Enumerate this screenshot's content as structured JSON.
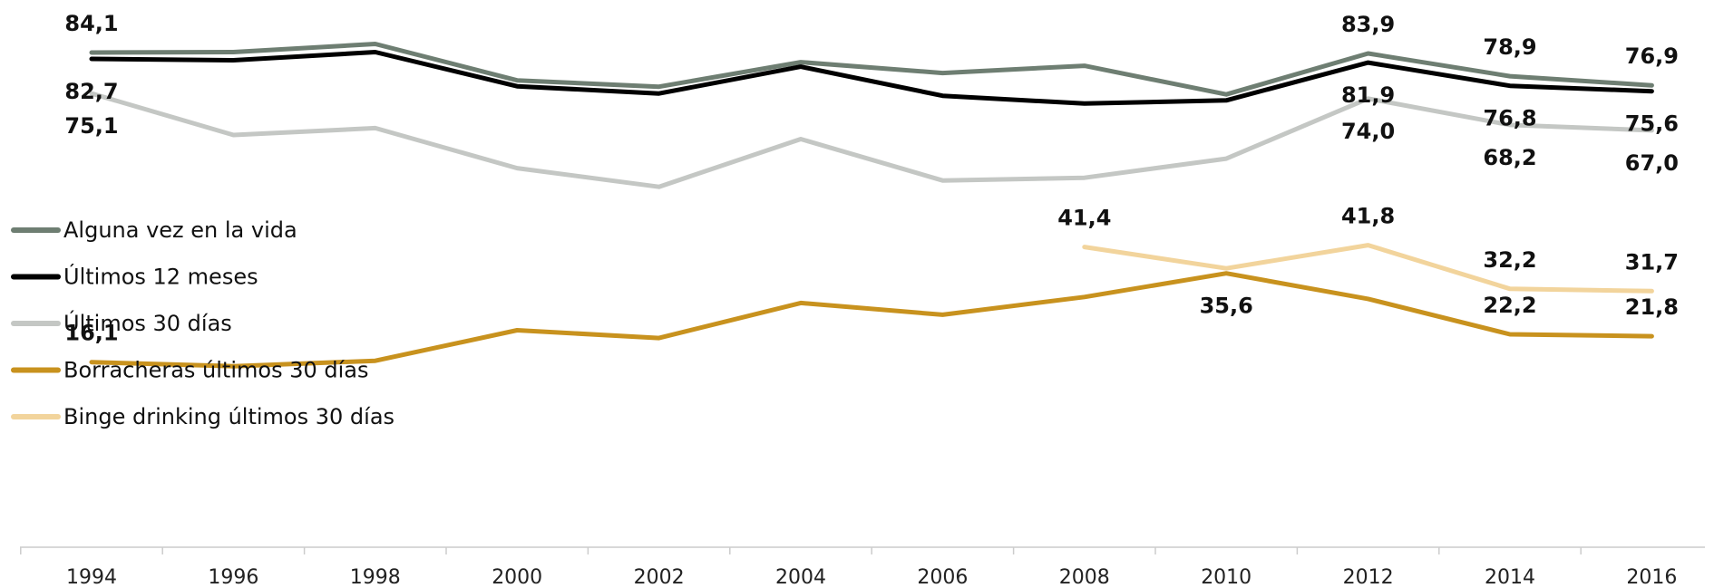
{
  "chart_data": {
    "type": "line",
    "title": "",
    "xlabel": "",
    "ylabel": "",
    "ylim": [
      0,
      90
    ],
    "grid": false,
    "legend_position": "left",
    "x": [
      "1994",
      "1996",
      "1998",
      "2000",
      "2002",
      "2004",
      "2006",
      "2008",
      "2010",
      "2012",
      "2014",
      "2016"
    ],
    "series": [
      {
        "name": "Alguna vez en la vida",
        "color": "#6e7e72",
        "values": [
          84.1,
          84.2,
          86.0,
          78.0,
          76.6,
          82.0,
          79.6,
          81.2,
          74.9,
          83.9,
          78.9,
          76.9
        ]
      },
      {
        "name": "Últimos 12 meses",
        "color": "#000000",
        "values": [
          82.7,
          82.4,
          84.2,
          76.7,
          75.1,
          81.0,
          74.6,
          72.9,
          73.6,
          81.9,
          76.8,
          75.6
        ]
      },
      {
        "name": "Últimos 30 días",
        "color": "#c4c7c4",
        "values": [
          75.1,
          66.0,
          67.5,
          58.7,
          54.6,
          65.1,
          56.0,
          56.6,
          60.8,
          74.0,
          68.2,
          67.0
        ]
      },
      {
        "name": "Borracheras últimos 30 días",
        "color": "#c8921e",
        "values": [
          16.1,
          15.2,
          16.4,
          23.1,
          21.4,
          29.1,
          26.5,
          30.4,
          35.6,
          30.0,
          22.2,
          21.8
        ]
      },
      {
        "name": "Binge drinking últimos 30 días",
        "color": "#f2d49c",
        "values": [
          null,
          null,
          null,
          null,
          null,
          null,
          null,
          41.4,
          36.7,
          41.8,
          32.2,
          31.7
        ]
      }
    ],
    "data_labels": [
      {
        "text": "84,1",
        "series": 0,
        "x": "1994",
        "pos": "above"
      },
      {
        "text": "82,7",
        "series": 1,
        "x": "1994",
        "pos": "below"
      },
      {
        "text": "75,1",
        "series": 2,
        "x": "1994",
        "pos": "below"
      },
      {
        "text": "16,1",
        "series": 3,
        "x": "1994",
        "pos": "above"
      },
      {
        "text": "83,9",
        "series": 0,
        "x": "2012",
        "pos": "above"
      },
      {
        "text": "81,9",
        "series": 1,
        "x": "2012",
        "pos": "below"
      },
      {
        "text": "74,0",
        "series": 2,
        "x": "2012",
        "pos": "below"
      },
      {
        "text": "78,9",
        "series": 0,
        "x": "2014",
        "pos": "above"
      },
      {
        "text": "76,8",
        "series": 1,
        "x": "2014",
        "pos": "below"
      },
      {
        "text": "68,2",
        "series": 2,
        "x": "2014",
        "pos": "below"
      },
      {
        "text": "76,9",
        "series": 0,
        "x": "2016",
        "pos": "above"
      },
      {
        "text": "75,6",
        "series": 1,
        "x": "2016",
        "pos": "below"
      },
      {
        "text": "67,0",
        "series": 2,
        "x": "2016",
        "pos": "below"
      },
      {
        "text": "41,4",
        "series": 4,
        "x": "2008",
        "pos": "above"
      },
      {
        "text": "41,8",
        "series": 4,
        "x": "2012",
        "pos": "above"
      },
      {
        "text": "32,2",
        "series": 4,
        "x": "2014",
        "pos": "above"
      },
      {
        "text": "31,7",
        "series": 4,
        "x": "2016",
        "pos": "above"
      },
      {
        "text": "35,6",
        "series": 3,
        "x": "2010",
        "pos": "below"
      },
      {
        "text": "22,2",
        "series": 3,
        "x": "2014",
        "pos": "above"
      },
      {
        "text": "21,8",
        "series": 3,
        "x": "2016",
        "pos": "above"
      }
    ]
  }
}
